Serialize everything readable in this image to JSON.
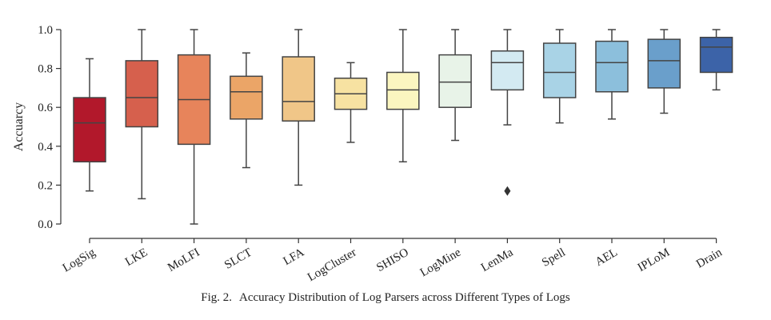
{
  "chart_data": {
    "type": "box",
    "title": "",
    "xlabel": "",
    "ylabel": "Accuarcy",
    "ylim": [
      0.0,
      1.0
    ],
    "yticks": [
      "0.0",
      "0.2",
      "0.4",
      "0.6",
      "0.8",
      "1.0"
    ],
    "grid": false,
    "categories": [
      "LogSig",
      "LKE",
      "MoLFI",
      "SLCT",
      "LFA",
      "LogCluster",
      "SHISO",
      "LogMine",
      "LenMa",
      "Spell",
      "AEL",
      "IPLoM",
      "Drain"
    ],
    "series": [
      {
        "name": "LogSig",
        "whisker_low": 0.17,
        "q1": 0.32,
        "median": 0.52,
        "q3": 0.65,
        "whisker_high": 0.85,
        "outliers": [],
        "color": "#b2182b"
      },
      {
        "name": "LKE",
        "whisker_low": 0.13,
        "q1": 0.5,
        "median": 0.65,
        "q3": 0.84,
        "whisker_high": 1.0,
        "outliers": [],
        "color": "#d6604d"
      },
      {
        "name": "MoLFI",
        "whisker_low": 0.0,
        "q1": 0.41,
        "median": 0.64,
        "q3": 0.87,
        "whisker_high": 1.0,
        "outliers": [],
        "color": "#e7845b"
      },
      {
        "name": "SLCT",
        "whisker_low": 0.29,
        "q1": 0.54,
        "median": 0.68,
        "q3": 0.76,
        "whisker_high": 0.88,
        "outliers": [],
        "color": "#eba567"
      },
      {
        "name": "LFA",
        "whisker_low": 0.2,
        "q1": 0.53,
        "median": 0.63,
        "q3": 0.86,
        "whisker_high": 1.0,
        "outliers": [],
        "color": "#f0c688"
      },
      {
        "name": "LogCluster",
        "whisker_low": 0.42,
        "q1": 0.59,
        "median": 0.67,
        "q3": 0.75,
        "whisker_high": 0.83,
        "outliers": [],
        "color": "#f7e2a2"
      },
      {
        "name": "SHISO",
        "whisker_low": 0.32,
        "q1": 0.59,
        "median": 0.69,
        "q3": 0.78,
        "whisker_high": 1.0,
        "outliers": [],
        "color": "#fbf6c0"
      },
      {
        "name": "LogMine",
        "whisker_low": 0.43,
        "q1": 0.6,
        "median": 0.73,
        "q3": 0.87,
        "whisker_high": 1.0,
        "outliers": [],
        "color": "#e8f3e8"
      },
      {
        "name": "LenMa",
        "whisker_low": 0.51,
        "q1": 0.69,
        "median": 0.83,
        "q3": 0.89,
        "whisker_high": 1.0,
        "outliers": [
          0.17
        ],
        "color": "#d3eaf2"
      },
      {
        "name": "Spell",
        "whisker_low": 0.52,
        "q1": 0.65,
        "median": 0.78,
        "q3": 0.93,
        "whisker_high": 1.0,
        "outliers": [],
        "color": "#a9d3e6"
      },
      {
        "name": "AEL",
        "whisker_low": 0.54,
        "q1": 0.68,
        "median": 0.83,
        "q3": 0.94,
        "whisker_high": 1.0,
        "outliers": [],
        "color": "#8cbfdc"
      },
      {
        "name": "IPLoM",
        "whisker_low": 0.57,
        "q1": 0.7,
        "median": 0.84,
        "q3": 0.95,
        "whisker_high": 1.0,
        "outliers": [],
        "color": "#6a9fcb"
      },
      {
        "name": "Drain",
        "whisker_low": 0.69,
        "q1": 0.78,
        "median": 0.91,
        "q3": 0.96,
        "whisker_high": 1.0,
        "outliers": [],
        "color": "#3c63a8"
      }
    ]
  },
  "caption": {
    "label": "Fig. 2.",
    "text": "Accuracy Distribution of Log Parsers across Different Types of Logs"
  }
}
